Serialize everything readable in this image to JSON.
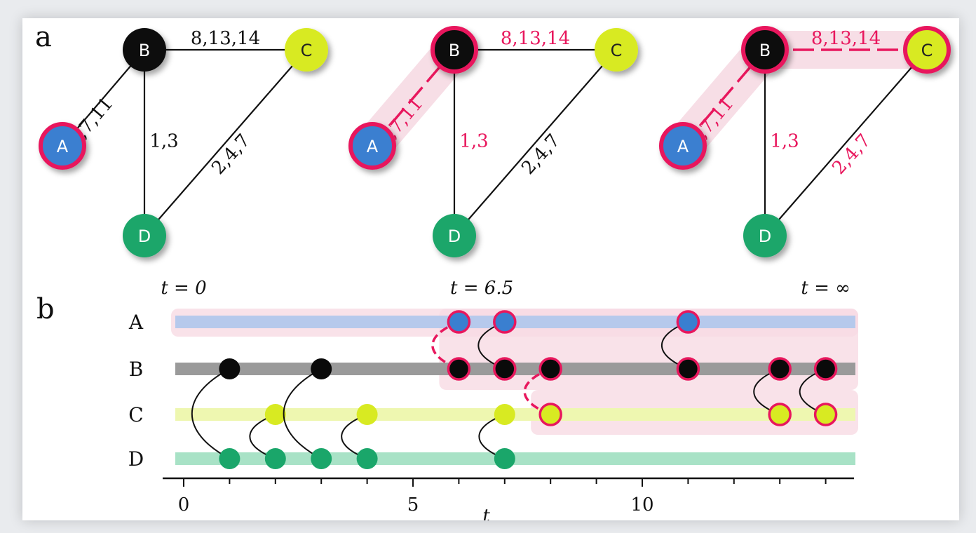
{
  "panels": {
    "a": "a",
    "b": "b"
  },
  "colors": {
    "A": "#3a7fd0",
    "B": "#0a0a0a",
    "C": "#d8ea22",
    "D": "#1aa66a",
    "highlight": "#e8175d",
    "highlight_bg": "#f7dbe4",
    "lane_A": "#b6c9ec",
    "lane_B": "#9a9a9a",
    "lane_C": "#eef7b0",
    "lane_D": "#a8e2c6"
  },
  "graph": {
    "nodes": [
      "A",
      "B",
      "C",
      "D"
    ],
    "edges": {
      "AB": "6,7,11",
      "BC": "8,13,14",
      "BD": "1,3",
      "CD": "2,4,7"
    }
  },
  "states": [
    {
      "infected": [
        "A"
      ],
      "highlight_edges": []
    },
    {
      "infected": [
        "A",
        "B"
      ],
      "highlight_edges": [
        "AB"
      ]
    },
    {
      "infected": [
        "A",
        "B",
        "C"
      ],
      "highlight_edges": [
        "AB",
        "BC"
      ]
    }
  ],
  "timeline": {
    "rows": [
      "A",
      "B",
      "C",
      "D"
    ],
    "time_labels": [
      "t = 0",
      "t = 6.5",
      "t = ∞"
    ],
    "axis_label": "t",
    "ticks": [
      "0",
      "5",
      "10"
    ],
    "xlim": [
      0,
      14
    ],
    "contacts": [
      {
        "t": 1,
        "pair": [
          "B",
          "D"
        ]
      },
      {
        "t": 2,
        "pair": [
          "C",
          "D"
        ]
      },
      {
        "t": 3,
        "pair": [
          "B",
          "D"
        ]
      },
      {
        "t": 4,
        "pair": [
          "C",
          "D"
        ]
      },
      {
        "t": 6,
        "pair": [
          "A",
          "B"
        ]
      },
      {
        "t": 7,
        "pair": [
          "A",
          "B"
        ]
      },
      {
        "t": 7,
        "pair": [
          "C",
          "D"
        ]
      },
      {
        "t": 8,
        "pair": [
          "B",
          "C"
        ]
      },
      {
        "t": 11,
        "pair": [
          "A",
          "B"
        ]
      },
      {
        "t": 13,
        "pair": [
          "B",
          "C"
        ]
      },
      {
        "t": 14,
        "pair": [
          "B",
          "C"
        ]
      }
    ]
  }
}
